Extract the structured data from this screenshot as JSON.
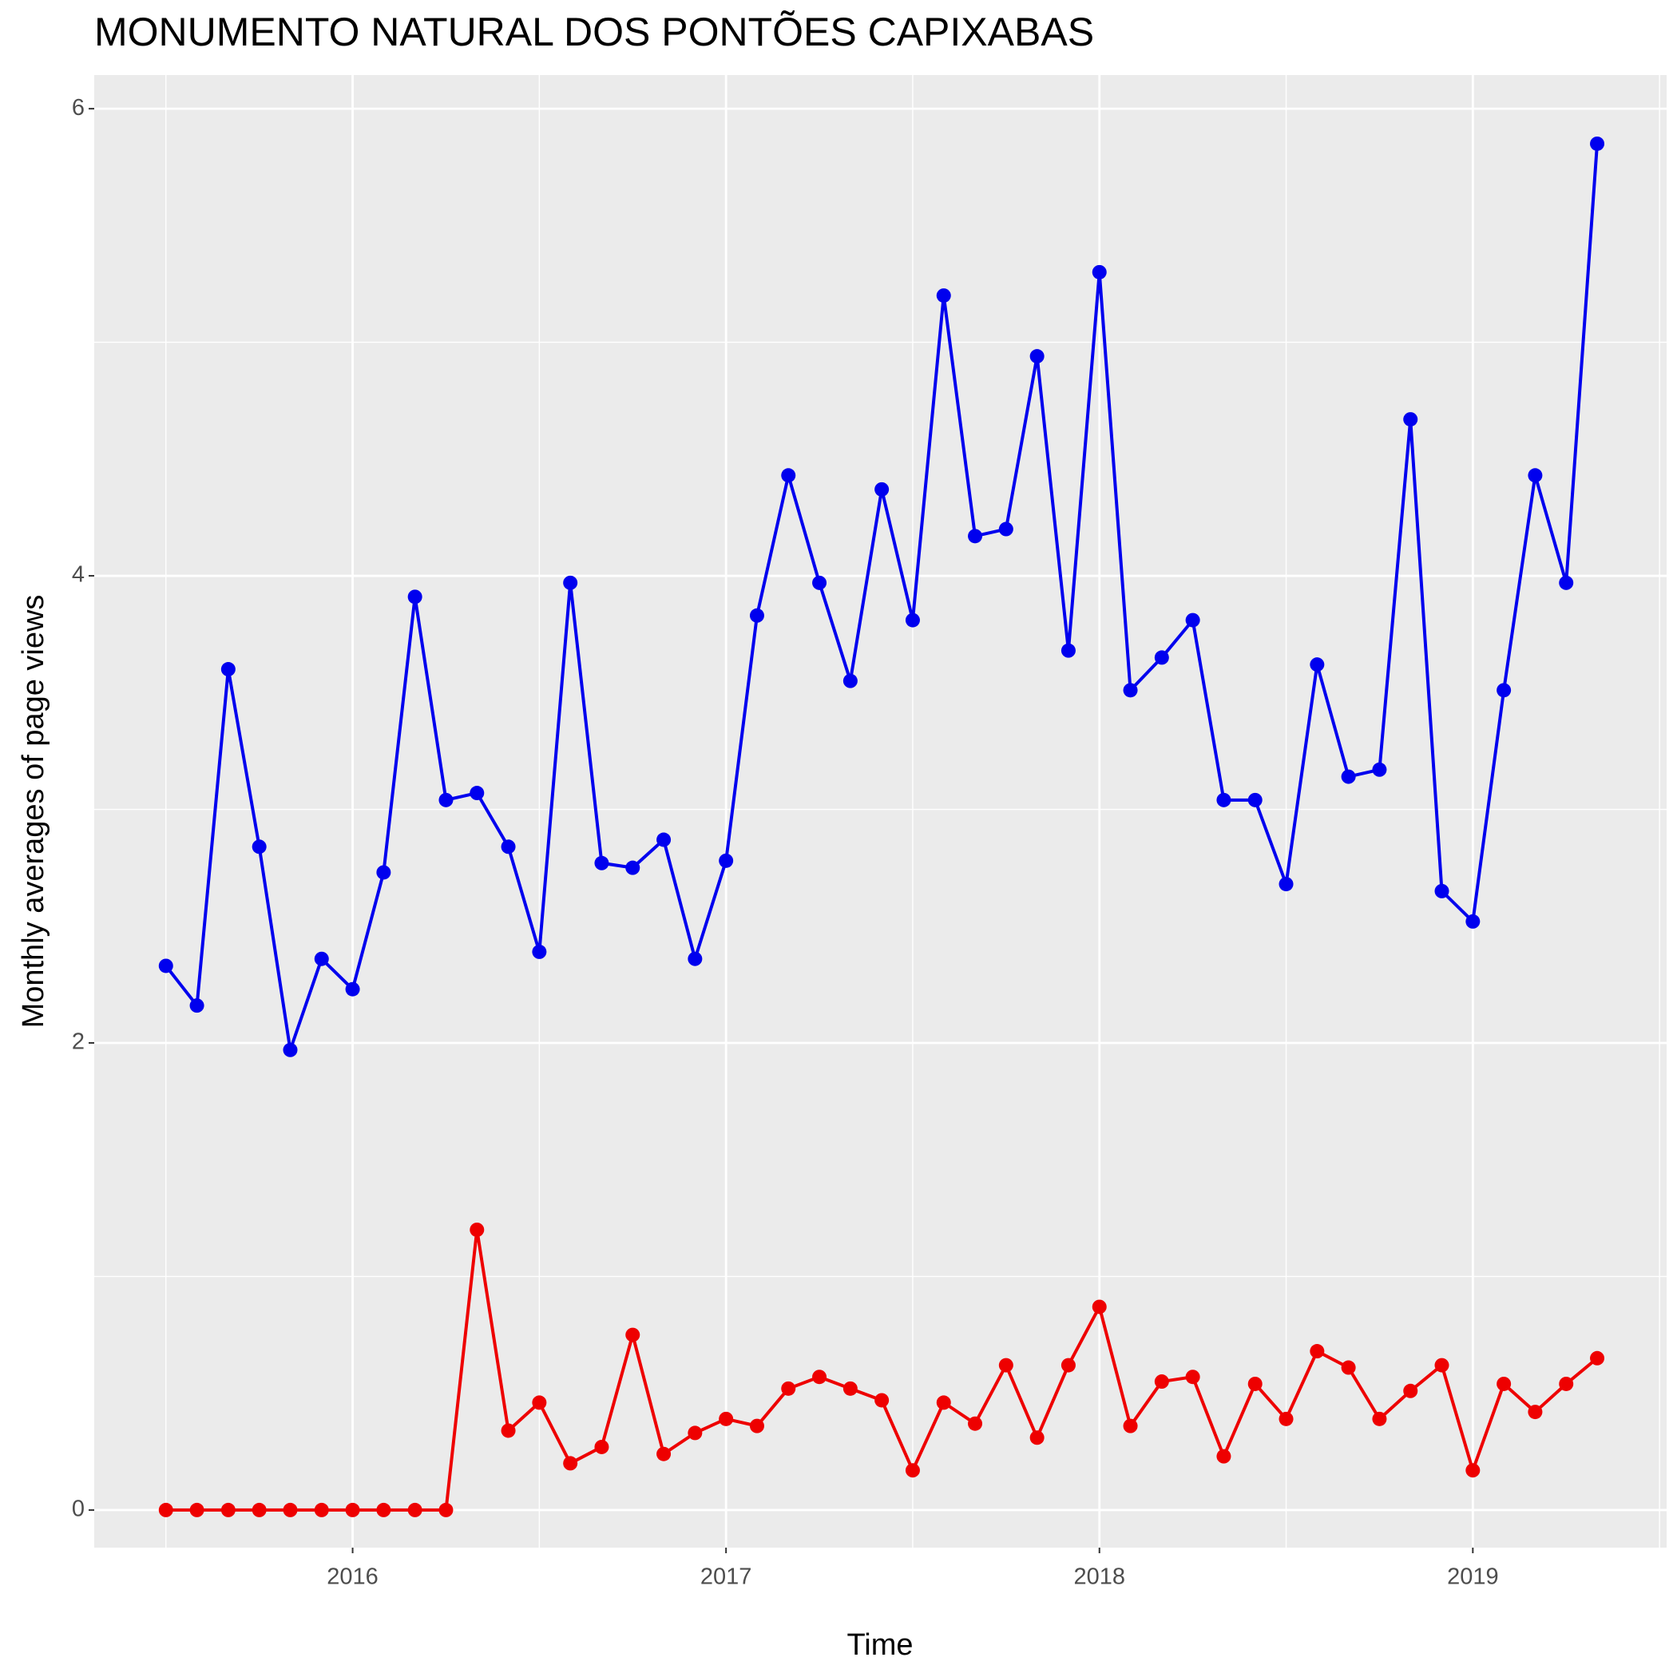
{
  "chart_data": {
    "type": "line",
    "title": "MONUMENTO NATURAL DOS PONTÕES CAPIXABAS",
    "xlabel": "Time",
    "ylabel": "Monthly averages of page views",
    "x": [
      2015.5,
      2015.583,
      2015.667,
      2015.75,
      2015.833,
      2015.917,
      2016,
      2016.083,
      2016.167,
      2016.25,
      2016.333,
      2016.417,
      2016.5,
      2016.583,
      2016.667,
      2016.75,
      2016.833,
      2016.917,
      2017,
      2017.083,
      2017.167,
      2017.25,
      2017.333,
      2017.417,
      2017.5,
      2017.583,
      2017.667,
      2017.75,
      2017.833,
      2017.917,
      2018,
      2018.083,
      2018.167,
      2018.25,
      2018.333,
      2018.417,
      2018.5,
      2018.583,
      2018.667,
      2018.75,
      2018.833,
      2018.917,
      2019,
      2019.083,
      2019.167,
      2019.25,
      2019.333
    ],
    "series": [
      {
        "color": "#0000ee",
        "values": [
          2.33,
          2.16,
          3.6,
          2.84,
          1.97,
          2.36,
          2.23,
          2.73,
          3.91,
          3.04,
          3.07,
          2.84,
          2.39,
          3.97,
          2.77,
          2.75,
          2.87,
          2.36,
          2.78,
          3.83,
          4.43,
          3.97,
          3.55,
          4.37,
          3.81,
          5.2,
          4.17,
          4.2,
          4.94,
          3.68,
          5.3,
          3.51,
          3.65,
          3.81,
          3.04,
          3.04,
          2.68,
          3.62,
          3.14,
          3.17,
          4.67,
          2.65,
          2.52,
          3.51,
          4.43,
          3.97,
          5.85
        ]
      },
      {
        "color": "#ee0000",
        "values": [
          0,
          0,
          0,
          0,
          0,
          0,
          0,
          0,
          0,
          0,
          1.2,
          0.34,
          0.46,
          0.2,
          0.27,
          0.75,
          0.24,
          0.33,
          0.39,
          0.36,
          0.52,
          0.57,
          0.52,
          0.47,
          0.17,
          0.46,
          0.37,
          0.62,
          0.31,
          0.62,
          0.87,
          0.36,
          0.55,
          0.57,
          0.23,
          0.54,
          0.39,
          0.68,
          0.61,
          0.39,
          0.51,
          0.62,
          0.17,
          0.54,
          0.42,
          0.54,
          0.65
        ]
      }
    ],
    "xlim": [
      2015.308,
      2019.519
    ],
    "xticks": [
      2016,
      2017,
      2018,
      2019
    ],
    "ylim": [
      -0.161,
      6.144
    ],
    "yticks": [
      0,
      2,
      4,
      6
    ],
    "grid": true,
    "markers": true
  }
}
